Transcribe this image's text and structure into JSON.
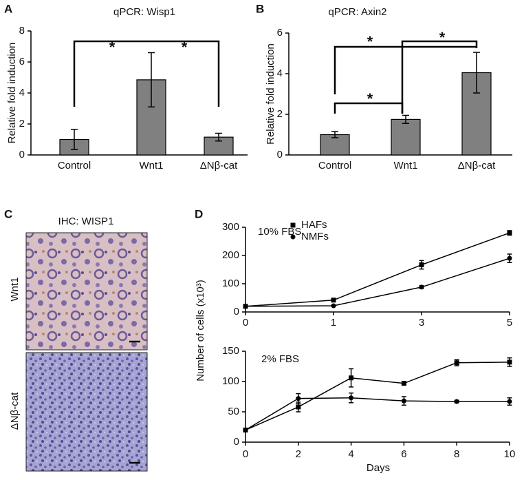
{
  "chart_data": [
    {
      "type": "bar",
      "panel": "A",
      "title": "qPCR: Wisp1",
      "ylabel": "Relative fold induction",
      "categories": [
        "Control",
        "Wnt1",
        "ΔNβ-cat"
      ],
      "values": [
        1.0,
        4.85,
        1.15
      ],
      "errors": [
        0.65,
        1.75,
        0.25
      ],
      "color": "#808080",
      "ylim": [
        0,
        8
      ],
      "yticks": [
        0,
        2,
        4,
        6,
        8
      ],
      "annotations": [
        "*",
        "*"
      ]
    },
    {
      "type": "bar",
      "panel": "B",
      "title": "qPCR: Axin2",
      "ylabel": "Relative fold induction",
      "categories": [
        "Control",
        "Wnt1",
        "ΔNβ-cat"
      ],
      "values": [
        1.0,
        1.75,
        4.05
      ],
      "errors": [
        0.15,
        0.2,
        1.0
      ],
      "color": "#808080",
      "ylim": [
        0,
        6
      ],
      "yticks": [
        0,
        2,
        4,
        6
      ],
      "annotations": [
        "*",
        "*",
        "*"
      ]
    },
    {
      "type": "image",
      "panel": "C",
      "title": "IHC: WISP1",
      "labels": [
        "Wnt1",
        "ΔNβ-cat"
      ]
    },
    {
      "type": "line",
      "panel": "D",
      "ylabel": "Number of cells (x10³)",
      "annotation": "10% FBS",
      "categories": [
        "0",
        "1",
        "3",
        "5"
      ],
      "series": [
        {
          "name": "HAFs",
          "color": "#000000",
          "marker": "square",
          "values": [
            20,
            42,
            167,
            280
          ],
          "errors": [
            0,
            3,
            15,
            8
          ]
        },
        {
          "name": "NMFs",
          "color": "#000000",
          "marker": "circle",
          "values": [
            20,
            22,
            88,
            190
          ],
          "errors": [
            0,
            2,
            5,
            15
          ]
        }
      ],
      "ylim": [
        0,
        300
      ],
      "yticks": [
        0,
        100,
        200,
        300
      ],
      "legend": "top-left"
    },
    {
      "type": "line",
      "xlabel": "Days",
      "annotation": "2% FBS",
      "x": [
        0,
        2,
        4,
        6,
        8,
        10
      ],
      "series": [
        {
          "color": "#000000",
          "marker": "square",
          "values": [
            20,
            58,
            106,
            97,
            131,
            132
          ],
          "errors": [
            0,
            8,
            15,
            3,
            5,
            7
          ]
        },
        {
          "color": "#000000",
          "marker": "circle",
          "values": [
            20,
            72,
            73,
            68,
            67,
            67
          ],
          "errors": [
            0,
            8,
            8,
            7,
            2,
            6
          ]
        }
      ],
      "xlim": [
        0,
        10
      ],
      "xticks": [
        0,
        2,
        4,
        6,
        8,
        10
      ],
      "ylim": [
        0,
        150
      ],
      "yticks": [
        0,
        50,
        100,
        150
      ]
    }
  ]
}
